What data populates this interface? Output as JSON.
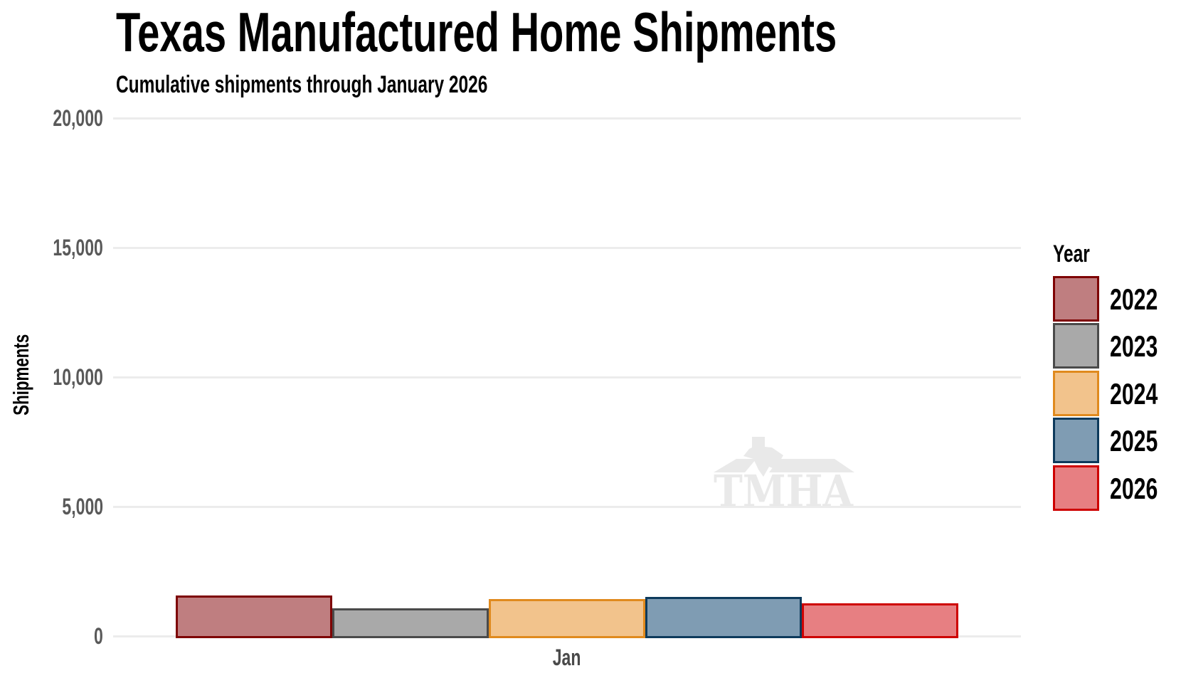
{
  "title": "Texas Manufactured Home Shipments",
  "subtitle": "Cumulative shipments through January 2026",
  "y_axis": {
    "label": "Shipments",
    "ticks": [
      "20,000",
      "15,000",
      "10,000",
      "5,000",
      "0"
    ]
  },
  "x_axis": {
    "label": "Jan"
  },
  "watermark": {
    "text": "TMHA"
  },
  "legend": {
    "title": "Year",
    "items": [
      {
        "label": "2022",
        "fill": "#BF7E80",
        "stroke": "#7E0203"
      },
      {
        "label": "2023",
        "fill": "#A9A9A9",
        "stroke": "#4A4A4A"
      },
      {
        "label": "2024",
        "fill": "#F2C38C",
        "stroke": "#E08A1E"
      },
      {
        "label": "2025",
        "fill": "#7F9CB3",
        "stroke": "#0D3A5C"
      },
      {
        "label": "2026",
        "fill": "#E77F82",
        "stroke": "#CE0000"
      }
    ]
  },
  "chart_data": {
    "type": "bar",
    "title": "Texas Manufactured Home Shipments",
    "subtitle": "Cumulative shipments through January 2026",
    "categories": [
      "Jan"
    ],
    "series": [
      {
        "name": "2022",
        "values": [
          1570
        ],
        "fill": "#BF7E80",
        "stroke": "#7E0203"
      },
      {
        "name": "2023",
        "values": [
          1060
        ],
        "fill": "#A9A9A9",
        "stroke": "#4A4A4A"
      },
      {
        "name": "2024",
        "values": [
          1430
        ],
        "fill": "#F2C38C",
        "stroke": "#E08A1E"
      },
      {
        "name": "2025",
        "values": [
          1510
        ],
        "fill": "#7F9CB3",
        "stroke": "#0D3A5C"
      },
      {
        "name": "2026",
        "values": [
          1260
        ],
        "fill": "#E77F82",
        "stroke": "#CE0000"
      }
    ],
    "xlabel": "",
    "ylabel": "Shipments",
    "ylim": [
      0,
      20000
    ],
    "ytick_interval": 5000,
    "grid": true,
    "legend_title": "Year",
    "legend_position": "right",
    "watermark": "TMHA"
  }
}
